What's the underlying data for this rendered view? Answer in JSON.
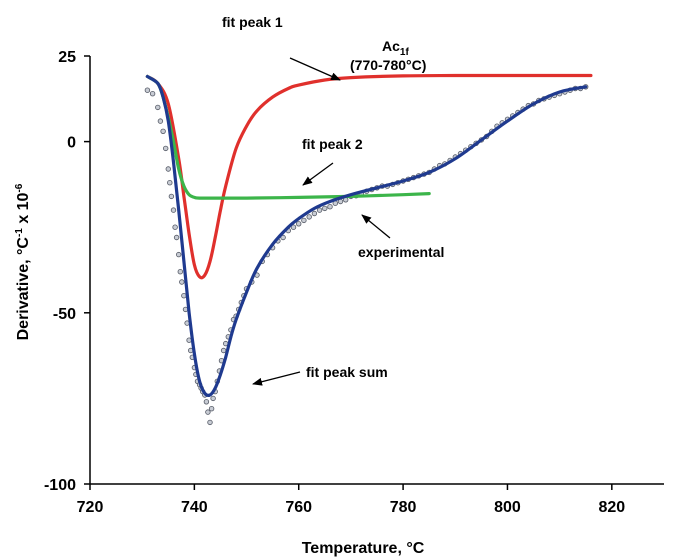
{
  "chart_data": {
    "type": "line",
    "title": "",
    "xlabel": "Temperature, °C",
    "ylabel": "Derivative, °C",
    "ylabel_sup1": "-1",
    "ylabel_mid": " x 10",
    "ylabel_sup2": "-6",
    "xlim": [
      720,
      830
    ],
    "ylim": [
      -100,
      25
    ],
    "xticks": [
      720,
      740,
      760,
      780,
      800,
      820
    ],
    "yticks": [
      25,
      0,
      -50,
      -100
    ],
    "grid": false,
    "colors": {
      "fit_peak_1": "#e0302c",
      "fit_peak_2": "#3cb54a",
      "fit_peak_sum": "#1f3a8f",
      "experimental": "#5a5f6b"
    },
    "series": [
      {
        "name": "fit peak 1",
        "x": [
          731,
          733,
          735,
          737,
          738,
          739,
          740,
          741,
          742,
          743,
          744,
          745,
          746,
          748,
          750,
          752,
          755,
          758,
          760,
          765,
          770,
          780,
          790,
          800,
          816
        ],
        "y": [
          19,
          17,
          11,
          -5,
          -16,
          -27,
          -36,
          -39.5,
          -39,
          -35,
          -28,
          -20,
          -13,
          -2,
          4.5,
          9,
          13,
          15.5,
          16.5,
          18,
          18.7,
          19.2,
          19.3,
          19.3,
          19.3
        ]
      },
      {
        "name": "fit peak 2",
        "x": [
          731,
          733,
          734,
          735,
          736,
          737,
          738,
          739,
          740,
          741,
          745,
          750,
          760,
          770,
          780,
          785
        ],
        "y": [
          19,
          17,
          13,
          7,
          0,
          -8,
          -13,
          -15.5,
          -16.3,
          -16.5,
          -16.5,
          -16.5,
          -16.3,
          -16,
          -15.5,
          -15.2
        ]
      },
      {
        "name": "fit peak sum",
        "x": [
          731,
          733,
          734,
          735,
          736,
          737,
          738,
          739,
          740,
          741,
          742,
          743,
          744,
          745,
          746,
          747,
          748,
          750,
          752,
          755,
          758,
          760,
          763,
          766,
          770,
          775,
          780,
          785,
          790,
          795,
          800,
          805,
          810,
          815
        ],
        "y": [
          19,
          17,
          13,
          6,
          -6,
          -20,
          -35,
          -50,
          -62,
          -70,
          -73.5,
          -74,
          -72,
          -68,
          -63,
          -57,
          -52,
          -44,
          -37,
          -30,
          -25,
          -22.5,
          -19.5,
          -17.5,
          -15.5,
          -13.5,
          -11.5,
          -9,
          -5,
          0.5,
          6,
          11,
          14.5,
          16
        ]
      }
    ],
    "experimental": {
      "name": "experimental",
      "x": [
        731,
        732,
        733,
        733.5,
        734,
        734.5,
        735,
        735.3,
        735.6,
        736,
        736.3,
        736.6,
        737,
        737.3,
        737.6,
        738,
        738.3,
        738.6,
        739,
        739.3,
        739.6,
        740,
        740.3,
        740.6,
        741,
        741.3,
        741.6,
        742,
        742.3,
        742.6,
        743,
        743.3,
        743.6,
        744,
        744.4,
        744.8,
        745.2,
        745.6,
        746,
        746.5,
        747,
        747.5,
        748,
        748.5,
        749,
        749.5,
        750,
        751,
        752,
        753,
        754,
        755,
        756,
        757,
        758,
        759,
        760,
        761,
        762,
        763,
        764,
        765,
        766,
        767,
        768,
        769,
        770,
        771,
        772,
        773,
        774,
        775,
        776,
        777,
        778,
        779,
        780,
        781,
        782,
        783,
        784,
        785,
        786,
        787,
        788,
        789,
        790,
        791,
        792,
        793,
        794,
        795,
        796,
        797,
        798,
        799,
        800,
        801,
        802,
        803,
        804,
        805,
        806,
        807,
        808,
        809,
        810,
        811,
        812,
        813,
        814,
        815
      ],
      "y": [
        15,
        14,
        10,
        6,
        3,
        -2,
        -8,
        -12,
        -16,
        -20,
        -25,
        -28,
        -33,
        -38,
        -41,
        -45,
        -49,
        -53,
        -58,
        -61,
        -63,
        -66,
        -68,
        -70,
        -71,
        -72,
        -73,
        -74,
        -76,
        -79,
        -82,
        -78,
        -75,
        -73,
        -70,
        -67,
        -64,
        -61,
        -59,
        -57,
        -55,
        -52,
        -51,
        -49,
        -47,
        -45,
        -43,
        -41,
        -39,
        -35,
        -33,
        -31,
        -29,
        -28,
        -26,
        -25,
        -24,
        -23,
        -22,
        -21,
        -20,
        -19.5,
        -19,
        -18,
        -17.5,
        -17,
        -16,
        -15.8,
        -15.2,
        -14.5,
        -14,
        -13.5,
        -13,
        -13,
        -12.5,
        -12,
        -11.5,
        -11,
        -10.5,
        -10,
        -9.5,
        -9,
        -8,
        -7,
        -6.5,
        -5.5,
        -4.5,
        -3.5,
        -2.5,
        -1.5,
        -0.5,
        0.5,
        1.5,
        3,
        4.5,
        5.5,
        6.5,
        7.5,
        8.5,
        9.5,
        10.5,
        11,
        12,
        12.5,
        13,
        13.5,
        14,
        14.5,
        15,
        15.5,
        15.5,
        16
      ]
    },
    "annotations": {
      "fit_peak_1": "fit peak 1",
      "ac_label": "Ac",
      "ac_sub": "1f",
      "ac_range": "(770-780°C)",
      "fit_peak_2": "fit peak 2",
      "experimental": "experimental",
      "fit_peak_sum": "fit peak sum"
    }
  }
}
